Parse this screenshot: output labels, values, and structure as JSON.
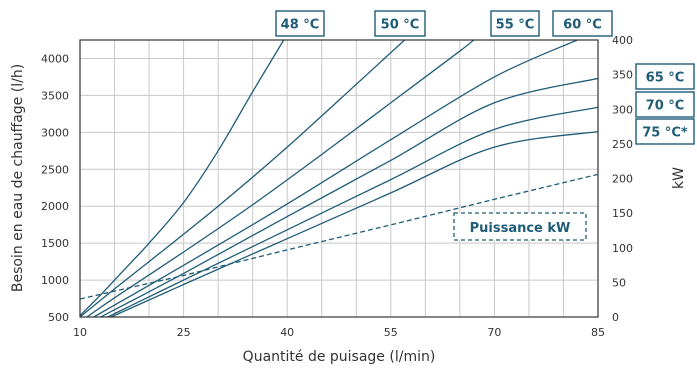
{
  "chart_data": {
    "type": "line",
    "xlabel": "Quantité de puisage (l/min)",
    "ylabel": "Besoin en eau de chauffage (l/h)",
    "y2label": "kW",
    "xlim": [
      10,
      85
    ],
    "ylim": [
      500,
      4250
    ],
    "y2lim": [
      0,
      400
    ],
    "x_ticks": [
      10,
      25,
      40,
      55,
      70,
      85
    ],
    "y_ticks": [
      500,
      1000,
      1500,
      2000,
      2500,
      3000,
      3500,
      4000
    ],
    "y2_ticks": [
      0,
      50,
      100,
      150,
      200,
      250,
      300,
      350,
      400
    ],
    "grid": true,
    "series": [
      {
        "name": "48 °C",
        "points": [
          [
            10,
            520
          ],
          [
            13,
            800
          ],
          [
            16,
            1100
          ],
          [
            20,
            1500
          ],
          [
            25,
            2050
          ],
          [
            30,
            2750
          ],
          [
            35,
            3550
          ],
          [
            39.5,
            4250
          ]
        ]
      },
      {
        "name": "50 °C",
        "points": [
          [
            10,
            500
          ],
          [
            15,
            880
          ],
          [
            20,
            1250
          ],
          [
            30,
            2000
          ],
          [
            40,
            2800
          ],
          [
            50,
            3650
          ],
          [
            57,
            4250
          ]
        ]
      },
      {
        "name": "55 °C",
        "points": [
          [
            11,
            500
          ],
          [
            15,
            760
          ],
          [
            25,
            1380
          ],
          [
            35,
            2020
          ],
          [
            45,
            2700
          ],
          [
            55,
            3400
          ],
          [
            65,
            4100
          ],
          [
            67,
            4250
          ]
        ]
      },
      {
        "name": "60 °C",
        "points": [
          [
            12,
            500
          ],
          [
            25,
            1200
          ],
          [
            40,
            2030
          ],
          [
            55,
            2900
          ],
          [
            70,
            3750
          ],
          [
            82,
            4250
          ]
        ]
      },
      {
        "name": "65 °C",
        "points": [
          [
            13,
            500
          ],
          [
            25,
            1090
          ],
          [
            40,
            1860
          ],
          [
            55,
            2620
          ],
          [
            70,
            3400
          ],
          [
            85,
            3730
          ]
        ]
      },
      {
        "name": "70 °C",
        "points": [
          [
            14,
            500
          ],
          [
            25,
            1000
          ],
          [
            40,
            1680
          ],
          [
            55,
            2360
          ],
          [
            70,
            3040
          ],
          [
            85,
            3340
          ]
        ]
      },
      {
        "name": "75 °C*",
        "points": [
          [
            14.5,
            500
          ],
          [
            25,
            940
          ],
          [
            40,
            1560
          ],
          [
            55,
            2180
          ],
          [
            70,
            2800
          ],
          [
            85,
            3010
          ]
        ]
      }
    ],
    "power_series": {
      "name": "Puissance kW",
      "axis": "y2",
      "points": [
        [
          10,
          26
        ],
        [
          25,
          60
        ],
        [
          40,
          97
        ],
        [
          55,
          133
        ],
        [
          70,
          170
        ],
        [
          85,
          206
        ]
      ]
    }
  }
}
